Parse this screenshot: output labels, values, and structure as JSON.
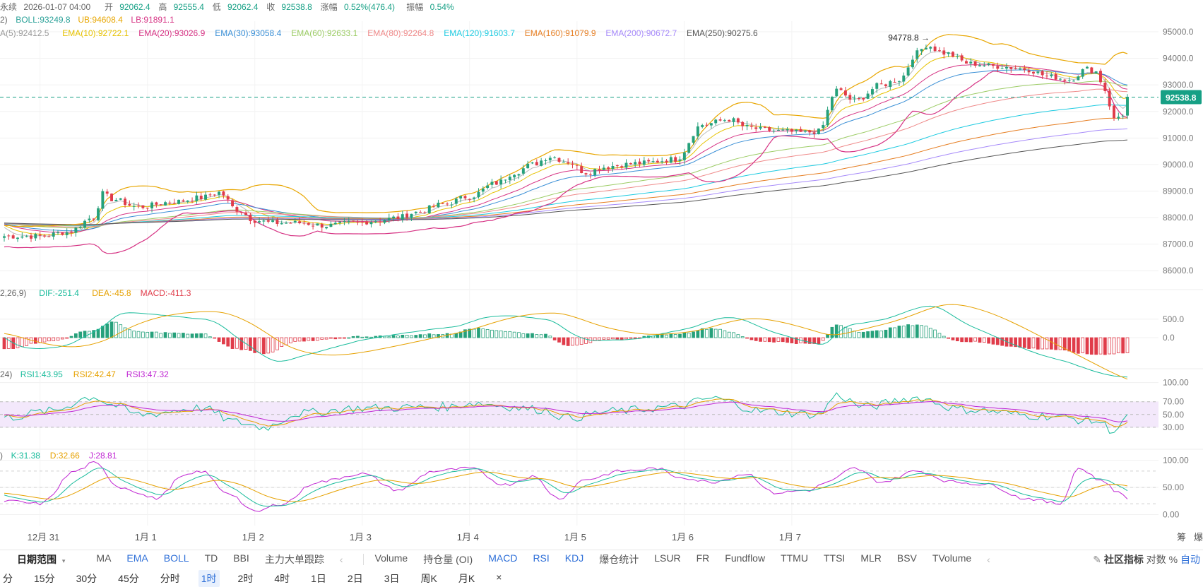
{
  "header": {
    "line1": [
      {
        "t": "永续",
        "c": "#666666"
      },
      {
        "t": "2026-01-07 04:00",
        "c": "#666666"
      },
      {
        "t": "开",
        "c": "#666666"
      },
      {
        "t": "92062.4",
        "c": "#16a085"
      },
      {
        "t": "高",
        "c": "#666666"
      },
      {
        "t": "92555.4",
        "c": "#16a085"
      },
      {
        "t": "低",
        "c": "#666666"
      },
      {
        "t": "92062.4",
        "c": "#16a085"
      },
      {
        "t": "收",
        "c": "#666666"
      },
      {
        "t": "92538.8",
        "c": "#16a085"
      },
      {
        "t": "涨幅",
        "c": "#666666"
      },
      {
        "t": "0.52%(476.4)",
        "c": "#16a085"
      },
      {
        "t": "振幅",
        "c": "#666666"
      },
      {
        "t": "0.54%",
        "c": "#16a085"
      }
    ],
    "line2": [
      {
        "t": "2)",
        "c": "#666666"
      },
      {
        "t": "BOLL:93249.8",
        "c": "#2aa198"
      },
      {
        "t": "UB:94608.4",
        "c": "#e8a600"
      },
      {
        "t": "LB:91891.1",
        "c": "#d63384"
      }
    ],
    "line3": [
      {
        "t": "A(5):92412.5",
        "c": "#999999"
      },
      {
        "t": "EMA(10):92722.1",
        "c": "#e6c200"
      },
      {
        "t": "EMA(20):93026.9",
        "c": "#d63384"
      },
      {
        "t": "EMA(30):93058.4",
        "c": "#3a8fd6"
      },
      {
        "t": "EMA(60):92633.1",
        "c": "#9ccc65"
      },
      {
        "t": "EMA(80):92264.8",
        "c": "#ef8a8a"
      },
      {
        "t": "EMA(120):91603.7",
        "c": "#1ecbe1"
      },
      {
        "t": "EMA(160):91079.9",
        "c": "#e67e22"
      },
      {
        "t": "EMA(200):90672.7",
        "c": "#a78bfa"
      },
      {
        "t": "EMA(250):90275.6",
        "c": "#555555"
      }
    ]
  },
  "macd_legend": [
    {
      "t": "2,26,9)",
      "c": "#666666"
    },
    {
      "t": "DIF:-251.4",
      "c": "#1abc9c"
    },
    {
      "t": "DEA:-45.8",
      "c": "#e6a100"
    },
    {
      "t": "MACD:-411.3",
      "c": "#e03c4a"
    }
  ],
  "rsi_legend": [
    {
      "t": "24)",
      "c": "#666666"
    },
    {
      "t": "RSI1:43.95",
      "c": "#1abc9c"
    },
    {
      "t": "RSI2:42.47",
      "c": "#e6a100"
    },
    {
      "t": "RSI3:47.32",
      "c": "#c026d3"
    }
  ],
  "kdj_legend": [
    {
      "t": ")",
      "c": "#666666"
    },
    {
      "t": "K:31.38",
      "c": "#1abc9c"
    },
    {
      "t": "D:32.66",
      "c": "#e6a100"
    },
    {
      "t": "J:28.81",
      "c": "#c026d3"
    }
  ],
  "colors": {
    "up": "#26a17b",
    "down": "#e03c4a",
    "grid": "#f1f1f1",
    "axis_text": "#777777",
    "price_tag": "#16a085",
    "rsi_band": "#f3e8fb"
  },
  "chart_data": {
    "type": "candlestick",
    "panels": [
      {
        "name": "price",
        "y_ticks": [
          86000,
          87000,
          88000,
          89000,
          90000,
          91000,
          92000,
          93000,
          94000,
          95000
        ],
        "y_tick_labels": [
          "86000.0",
          "87000.0",
          "88000.0",
          "89000.0",
          "90000.0",
          "91000.0",
          "92000.0",
          "93000.0",
          "94000.0",
          "95000.0"
        ],
        "ylim": [
          85500,
          95400
        ]
      },
      {
        "name": "macd",
        "y_ticks": [
          0,
          500
        ],
        "y_tick_labels": [
          "0.0",
          "500.0"
        ],
        "ylim": [
          -900,
          1150
        ]
      },
      {
        "name": "rsi",
        "y_ticks": [
          30,
          50,
          70,
          100
        ],
        "y_tick_labels": [
          "30.00",
          "50.00",
          "70.00",
          "100.00"
        ],
        "ylim": [
          0,
          115
        ],
        "band": [
          30,
          70
        ]
      },
      {
        "name": "kdj",
        "y_ticks": [
          0,
          50,
          100
        ],
        "y_tick_labels": [
          "0.00",
          "50.00",
          "100.00"
        ],
        "ylim": [
          -15,
          115
        ]
      }
    ],
    "x_labels": [
      {
        "label": "12月 31",
        "x": "2025-12-31"
      },
      {
        "label": "1月 1",
        "x": "2026-01-01"
      },
      {
        "label": "1月 2",
        "x": "2026-01-02"
      },
      {
        "label": "1月 3",
        "x": "2026-01-03"
      },
      {
        "label": "1月 4",
        "x": "2026-01-04"
      },
      {
        "label": "1月 5",
        "x": "2026-01-05"
      },
      {
        "label": "1月 6",
        "x": "2026-01-06"
      },
      {
        "label": "1月 7",
        "x": "2026-01-07"
      }
    ],
    "bars_per_day": 24,
    "first_bar": "2025-12-30 16:00",
    "last_price": 92538.8,
    "last_price_label": "92538.8",
    "high_marker": {
      "value": 94778.8,
      "label": "94778.8 →",
      "x": "2026-01-06 00:00"
    },
    "close_anchors": [
      [
        0,
        87300
      ],
      [
        8,
        87300
      ],
      [
        14,
        87450
      ],
      [
        20,
        88000
      ],
      [
        22,
        88900
      ],
      [
        24,
        88700
      ],
      [
        30,
        88400
      ],
      [
        38,
        88600
      ],
      [
        44,
        88750
      ],
      [
        48,
        88950
      ],
      [
        52,
        88300
      ],
      [
        56,
        87900
      ],
      [
        60,
        87800
      ],
      [
        66,
        87800
      ],
      [
        72,
        87700
      ],
      [
        78,
        87800
      ],
      [
        84,
        87900
      ],
      [
        88,
        88000
      ],
      [
        92,
        88200
      ],
      [
        98,
        88500
      ],
      [
        104,
        88800
      ],
      [
        110,
        89300
      ],
      [
        114,
        89700
      ],
      [
        118,
        90000
      ],
      [
        122,
        90300
      ],
      [
        126,
        90100
      ],
      [
        130,
        89700
      ],
      [
        134,
        89900
      ],
      [
        138,
        90000
      ],
      [
        142,
        90050
      ],
      [
        150,
        90200
      ],
      [
        156,
        91500
      ],
      [
        162,
        91700
      ],
      [
        166,
        91400
      ],
      [
        170,
        91300
      ],
      [
        174,
        91250
      ],
      [
        178,
        91200
      ],
      [
        182,
        91250
      ],
      [
        186,
        92800
      ],
      [
        190,
        92400
      ],
      [
        196,
        93000
      ],
      [
        200,
        93200
      ],
      [
        204,
        94200
      ],
      [
        206,
        94500
      ],
      [
        210,
        94200
      ],
      [
        216,
        93800
      ],
      [
        222,
        93700
      ],
      [
        228,
        93600
      ],
      [
        234,
        93300
      ],
      [
        238,
        93200
      ],
      [
        242,
        93600
      ],
      [
        244,
        93500
      ],
      [
        246,
        92800
      ],
      [
        248,
        91700
      ],
      [
        250,
        91900
      ],
      [
        251,
        92538.8
      ]
    ],
    "macd_anchors": [
      [
        0,
        -300
      ],
      [
        10,
        -100
      ],
      [
        20,
        200
      ],
      [
        24,
        420
      ],
      [
        30,
        150
      ],
      [
        44,
        100
      ],
      [
        52,
        -300
      ],
      [
        58,
        -420
      ],
      [
        66,
        -100
      ],
      [
        80,
        30
      ],
      [
        100,
        100
      ],
      [
        104,
        250
      ],
      [
        120,
        100
      ],
      [
        126,
        -200
      ],
      [
        136,
        -50
      ],
      [
        150,
        100
      ],
      [
        158,
        250
      ],
      [
        170,
        -100
      ],
      [
        182,
        -170
      ],
      [
        186,
        350
      ],
      [
        192,
        150
      ],
      [
        204,
        350
      ],
      [
        214,
        -100
      ],
      [
        232,
        -300
      ],
      [
        244,
        -450
      ],
      [
        251,
        -411.3
      ]
    ],
    "rsi_anchors": [
      [
        0,
        45
      ],
      [
        10,
        55
      ],
      [
        20,
        78
      ],
      [
        24,
        65
      ],
      [
        30,
        50
      ],
      [
        44,
        60
      ],
      [
        52,
        38
      ],
      [
        58,
        30
      ],
      [
        66,
        52
      ],
      [
        80,
        60
      ],
      [
        100,
        62
      ],
      [
        104,
        68
      ],
      [
        120,
        58
      ],
      [
        126,
        45
      ],
      [
        136,
        55
      ],
      [
        150,
        62
      ],
      [
        158,
        75
      ],
      [
        170,
        55
      ],
      [
        182,
        50
      ],
      [
        186,
        80
      ],
      [
        192,
        62
      ],
      [
        204,
        76
      ],
      [
        214,
        58
      ],
      [
        232,
        48
      ],
      [
        244,
        40
      ],
      [
        248,
        25
      ],
      [
        251,
        43.95
      ]
    ],
    "kdj_anchors": [
      [
        0,
        25
      ],
      [
        8,
        20
      ],
      [
        16,
        80
      ],
      [
        20,
        95
      ],
      [
        26,
        50
      ],
      [
        34,
        30
      ],
      [
        40,
        70
      ],
      [
        44,
        80
      ],
      [
        50,
        40
      ],
      [
        56,
        5
      ],
      [
        62,
        20
      ],
      [
        70,
        60
      ],
      [
        80,
        75
      ],
      [
        88,
        45
      ],
      [
        96,
        80
      ],
      [
        104,
        85
      ],
      [
        112,
        55
      ],
      [
        118,
        70
      ],
      [
        124,
        30
      ],
      [
        130,
        65
      ],
      [
        138,
        80
      ],
      [
        146,
        85
      ],
      [
        150,
        70
      ],
      [
        158,
        60
      ],
      [
        166,
        75
      ],
      [
        172,
        40
      ],
      [
        180,
        45
      ],
      [
        184,
        60
      ],
      [
        190,
        85
      ],
      [
        196,
        60
      ],
      [
        204,
        80
      ],
      [
        212,
        60
      ],
      [
        220,
        55
      ],
      [
        228,
        30
      ],
      [
        236,
        20
      ],
      [
        240,
        85
      ],
      [
        246,
        60
      ],
      [
        249,
        40
      ],
      [
        251,
        31.38
      ]
    ]
  },
  "toolbar": {
    "range_label": "日期范围",
    "main_indicators": [
      "MA",
      "EMA",
      "BOLL",
      "TD",
      "BBI",
      "主力大单跟踪"
    ],
    "main_on": [
      false,
      true,
      true,
      false,
      false,
      false
    ],
    "sub_indicators": [
      "Volume",
      "持仓量 (OI)",
      "MACD",
      "RSI",
      "KDJ",
      "爆仓统计",
      "LSUR",
      "FR",
      "Fundflow",
      "TTMU",
      "TTSI",
      "MLR",
      "BSV",
      "TVolume"
    ],
    "sub_on": [
      false,
      false,
      true,
      true,
      true,
      false,
      false,
      false,
      false,
      false,
      false,
      false,
      false,
      false
    ],
    "community_label": "社区指标",
    "log_label": "对数",
    "pct_label": "%",
    "auto_label": "自动",
    "side_labels": [
      "筹",
      "爆"
    ]
  },
  "timeframes": {
    "items": [
      "分",
      "15分",
      "30分",
      "45分",
      "分时",
      "1时",
      "2时",
      "4时",
      "1日",
      "2日",
      "3日",
      "周K",
      "月K",
      "×"
    ],
    "selected": "1时"
  }
}
